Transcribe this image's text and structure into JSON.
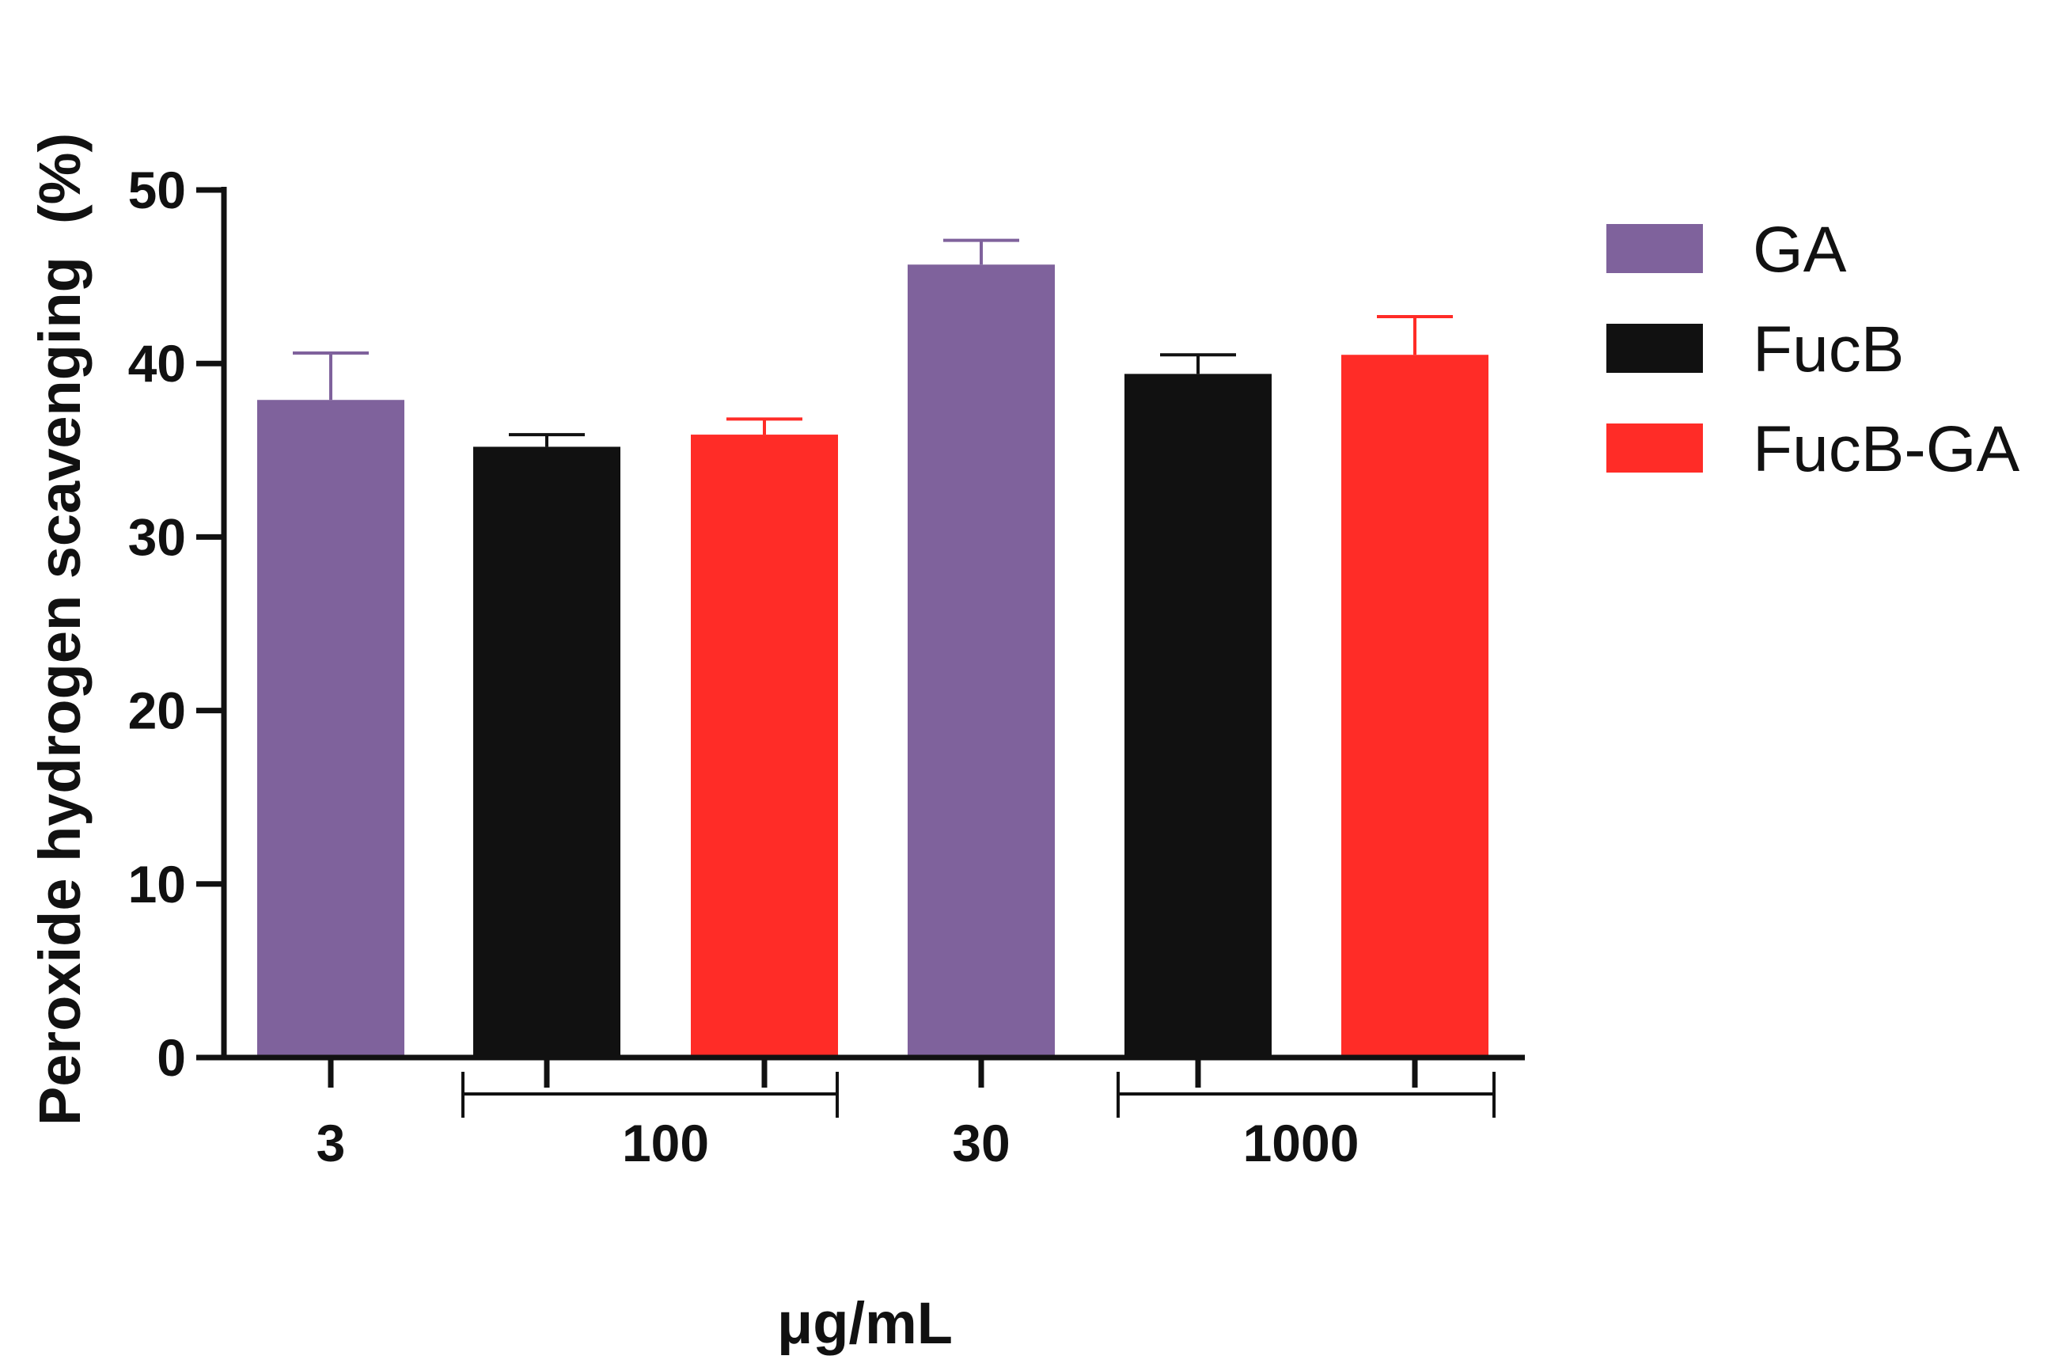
{
  "chart_data": {
    "type": "bar",
    "title": "",
    "ylabel": "Peroxide hydrogen scavenging  (%)",
    "xlabel": "μg/mL",
    "ylim": [
      0,
      50
    ],
    "yticks": [
      0,
      10,
      20,
      30,
      40,
      50
    ],
    "xtick_labels": [
      "3",
      "100",
      "30",
      "1000"
    ],
    "bars": [
      {
        "series": "GA",
        "value": 37.9,
        "error": 2.7
      },
      {
        "series": "FucB",
        "value": 35.2,
        "error": 0.7
      },
      {
        "series": "FucB-GA",
        "value": 35.9,
        "error": 0.9
      },
      {
        "series": "GA",
        "value": 45.7,
        "error": 1.4
      },
      {
        "series": "FucB",
        "value": 39.4,
        "error": 1.1
      },
      {
        "series": "FucB-GA",
        "value": 40.5,
        "error": 2.2
      }
    ],
    "legend": [
      {
        "name": "GA",
        "color": "#7F629C"
      },
      {
        "name": "FucB",
        "color": "#111111"
      },
      {
        "name": "FucB-GA",
        "color": "#FF2C27"
      }
    ],
    "legend_position": "top-right"
  }
}
